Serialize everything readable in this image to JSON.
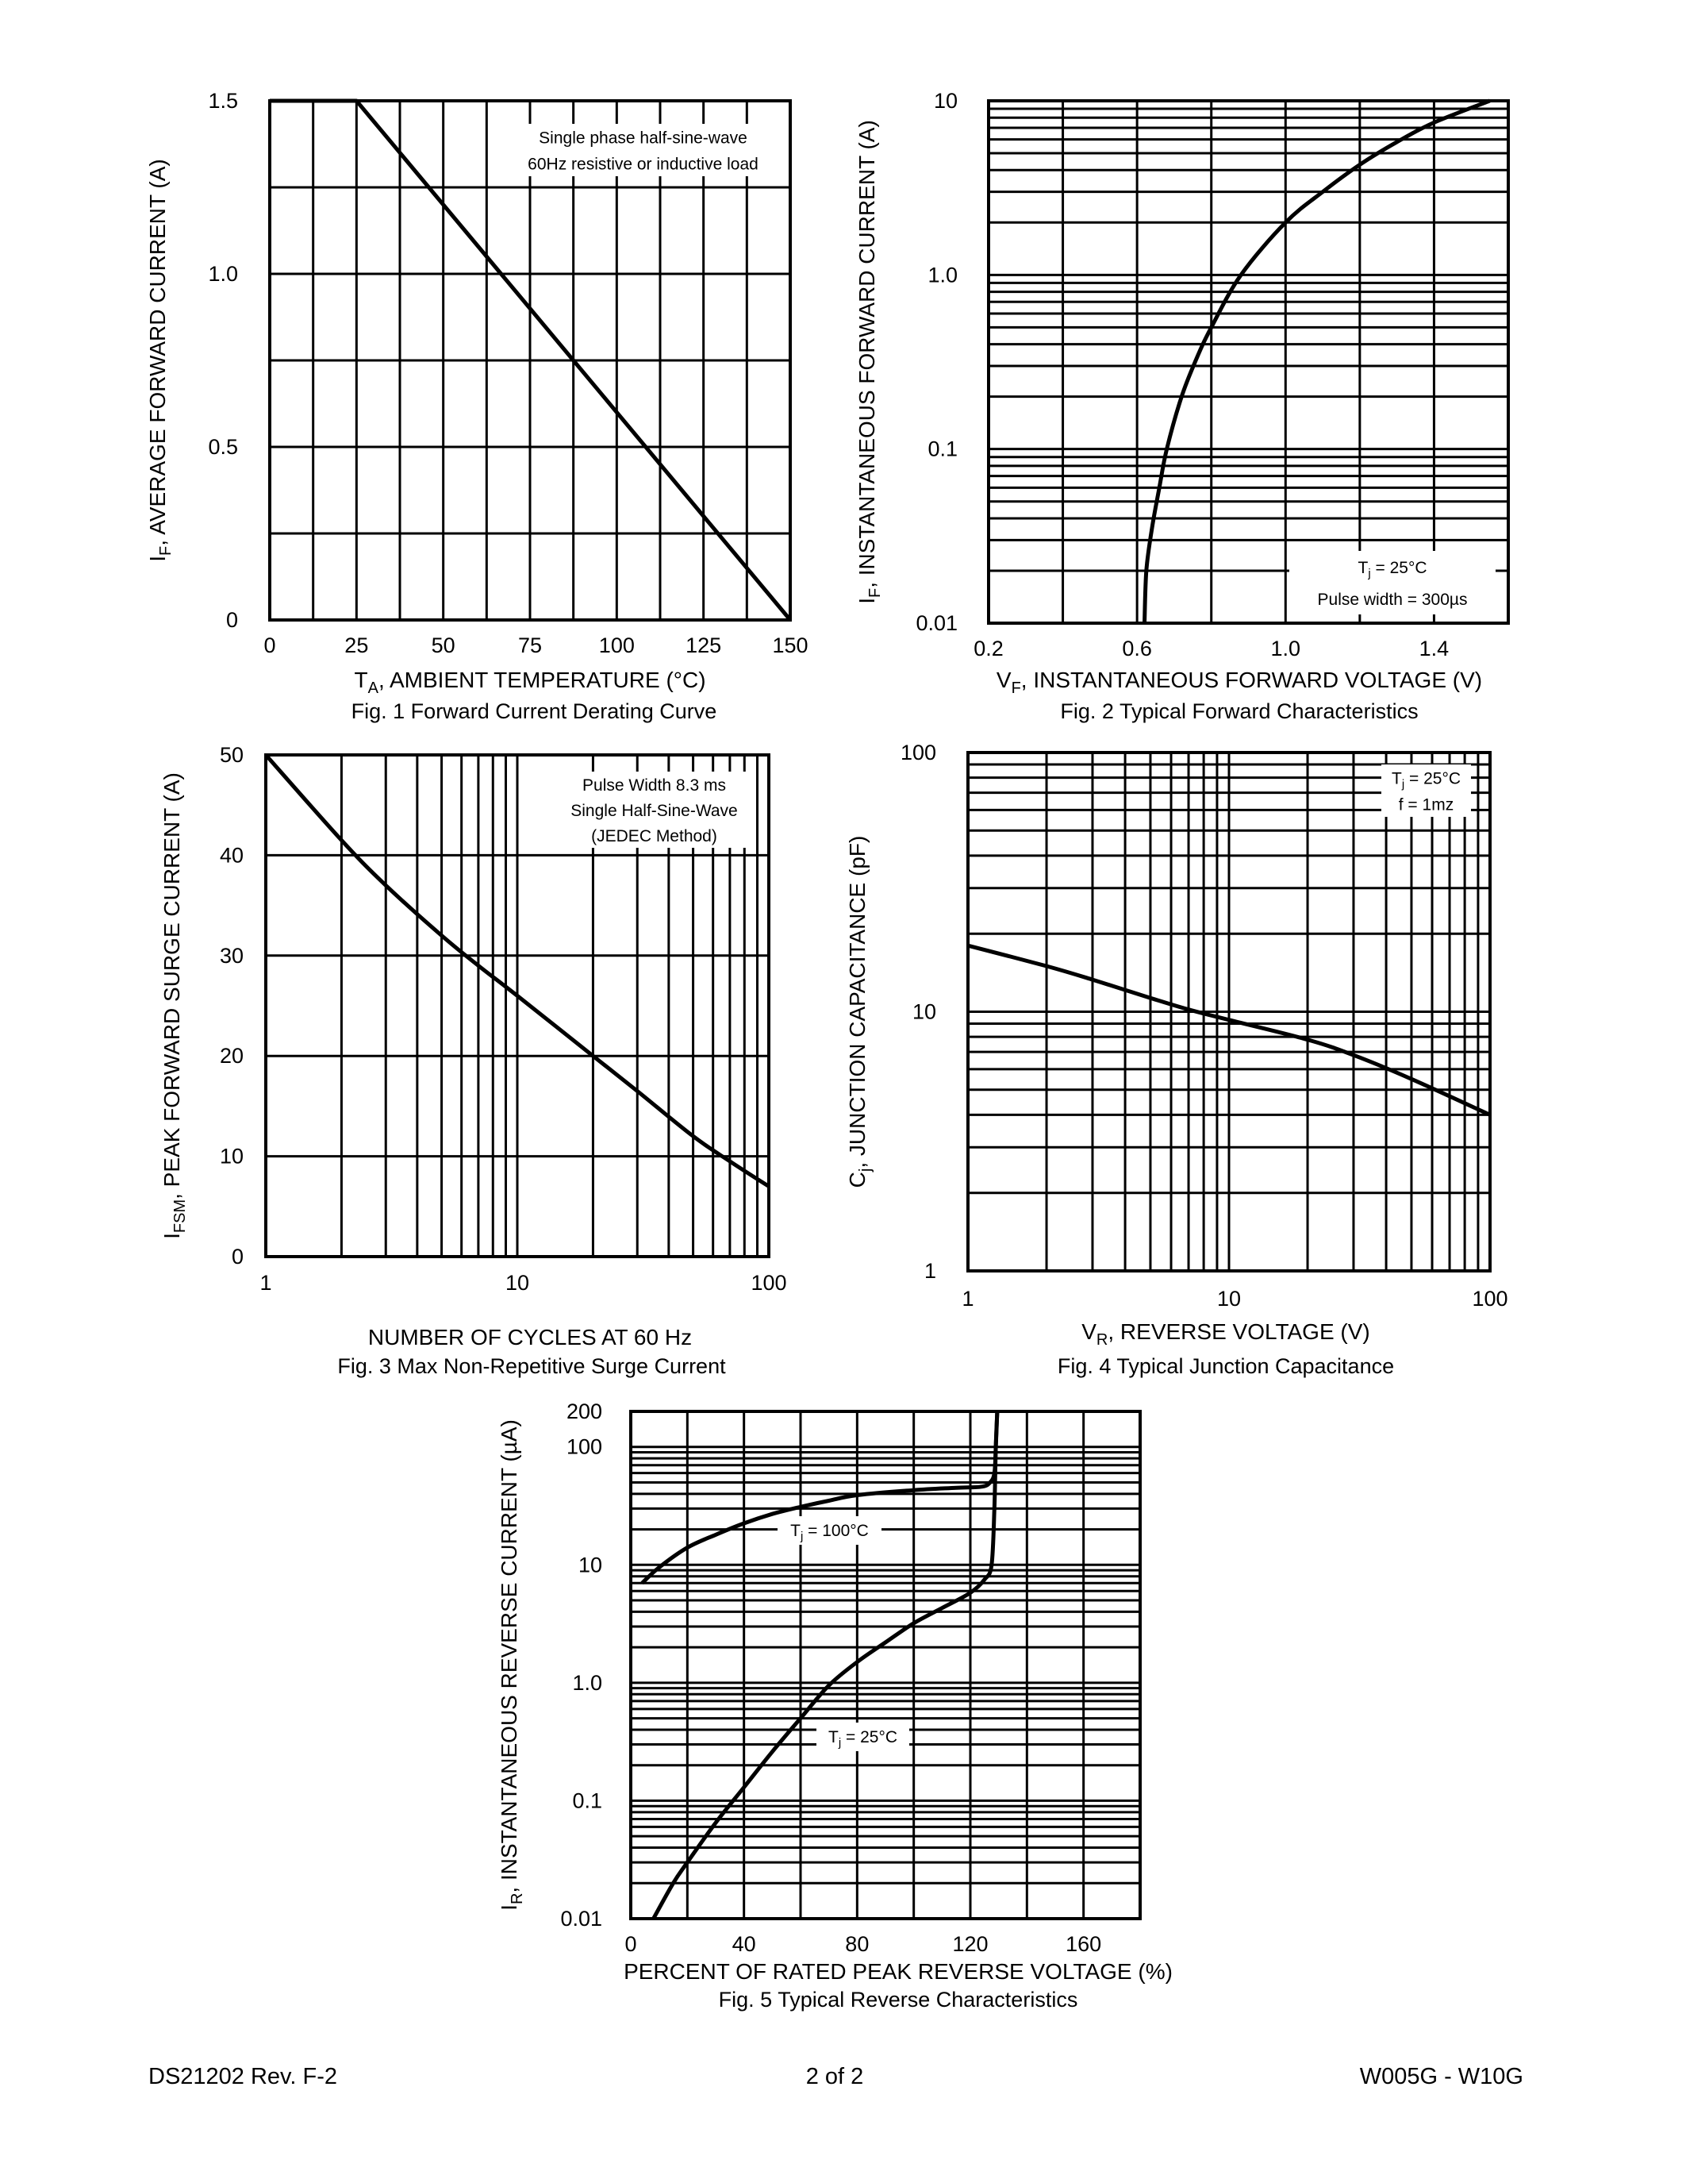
{
  "footer": {
    "left": "DS21202 Rev. F-2",
    "center": "2 of 2",
    "right": "W005G - W10G"
  },
  "colors": {
    "line": "#000000",
    "grid": "#000000",
    "background": "#ffffff"
  },
  "chart_data": [
    {
      "type": "line",
      "title": "Fig. 1  Forward Current Derating Curve",
      "xlabel": {
        "pre": "T",
        "sub": "A",
        "post": ", AMBIENT TEMPERATURE (°C)"
      },
      "ylabel": {
        "pre": "I",
        "sub": "F",
        "post": ", AVERAGE FORWARD CURRENT (A)"
      },
      "xscale": "linear",
      "yscale": "linear",
      "xlim": [
        0,
        150
      ],
      "ylim": [
        0,
        1.5
      ],
      "grid": true,
      "xgrid_step": 12.5,
      "ygrid_step": 0.25,
      "xticks": [
        {
          "v": 0,
          "label": "0"
        },
        {
          "v": 25,
          "label": "25"
        },
        {
          "v": 50,
          "label": "50"
        },
        {
          "v": 75,
          "label": "75"
        },
        {
          "v": 100,
          "label": "100"
        },
        {
          "v": 125,
          "label": "125"
        },
        {
          "v": 150,
          "label": "150"
        }
      ],
      "yticks": [
        {
          "v": 0,
          "label": "0"
        },
        {
          "v": 0.5,
          "label": "0.5"
        },
        {
          "v": 1.0,
          "label": "1.0"
        },
        {
          "v": 1.5,
          "label": "1.5"
        }
      ],
      "annotation": [
        {
          "pre": "Single phase half-sine-wave"
        },
        {
          "pre": "60Hz resistive or inductive load"
        }
      ],
      "series": [
        {
          "x": [
            0,
            25,
            150
          ],
          "y": [
            1.5,
            1.5,
            0
          ]
        }
      ]
    },
    {
      "type": "line",
      "title": "Fig. 2  Typical Forward Characteristics",
      "xlabel": {
        "pre": "V",
        "sub": "F",
        "post": ", INSTANTANEOUS FORWARD VOLTAGE (V)"
      },
      "ylabel": {
        "pre": "I",
        "sub": "F",
        "post": ", INSTANTANEOUS FORWARD CURRENT (A)"
      },
      "xscale": "linear",
      "yscale": "log",
      "xlim": [
        0.2,
        1.6
      ],
      "ylim": [
        0.01,
        10
      ],
      "grid": true,
      "xgrid_step": 0.2,
      "xticks": [
        {
          "v": 0.2,
          "label": "0.2"
        },
        {
          "v": 0.6,
          "label": "0.6"
        },
        {
          "v": 1.0,
          "label": "1.0"
        },
        {
          "v": 1.4,
          "label": "1.4"
        }
      ],
      "yticks": [
        {
          "v": 0.01,
          "label": "0.01"
        },
        {
          "v": 0.1,
          "label": "0.1"
        },
        {
          "v": 1,
          "label": "1.0"
        },
        {
          "v": 10,
          "label": "10"
        }
      ],
      "annotation": [
        {
          "pre": "T",
          "sub": "j",
          "post": " = 25°C"
        },
        {
          "pre": "Pulse width = 300µs"
        }
      ],
      "series": [
        {
          "x": [
            0.62,
            0.625,
            0.64,
            0.66,
            0.68,
            0.72,
            0.76,
            0.8,
            0.88,
            1.0,
            1.1,
            1.2,
            1.3,
            1.4,
            1.55
          ],
          "y": [
            0.01,
            0.02,
            0.035,
            0.06,
            0.1,
            0.2,
            0.33,
            0.5,
            1.0,
            2.0,
            3.0,
            4.3,
            5.8,
            7.5,
            10
          ]
        }
      ]
    },
    {
      "type": "line",
      "title": "Fig. 3  Max Non-Repetitive Surge Current",
      "xlabel": {
        "pre": "NUMBER OF CYCLES AT 60 Hz"
      },
      "ylabel": {
        "pre": "I",
        "sub": "FSM",
        "post": ", PEAK FORWARD SURGE CURRENT (A)"
      },
      "xscale": "log",
      "yscale": "linear",
      "xlim": [
        1,
        100
      ],
      "ylim": [
        0,
        50
      ],
      "grid": true,
      "ygrid_step": 10,
      "xticks": [
        {
          "v": 1,
          "label": "1"
        },
        {
          "v": 10,
          "label": "10"
        },
        {
          "v": 100,
          "label": "100"
        }
      ],
      "yticks": [
        {
          "v": 0,
          "label": "0"
        },
        {
          "v": 10,
          "label": "10"
        },
        {
          "v": 20,
          "label": "20"
        },
        {
          "v": 30,
          "label": "30"
        },
        {
          "v": 40,
          "label": "40"
        },
        {
          "v": 50,
          "label": "50"
        }
      ],
      "annotation": [
        {
          "pre": "Pulse Width 8.3 ms"
        },
        {
          "pre": "Single Half-Sine-Wave"
        },
        {
          "pre": "(JEDEC Method)"
        }
      ],
      "series": [
        {
          "x": [
            1,
            2,
            3,
            5,
            7,
            10,
            20,
            30,
            50,
            70,
            100
          ],
          "y": [
            50,
            41.5,
            37,
            32,
            29,
            26,
            20,
            16.5,
            12,
            9.5,
            7
          ]
        }
      ]
    },
    {
      "type": "line",
      "title": "Fig. 4  Typical Junction Capacitance",
      "xlabel": {
        "pre": "V",
        "sub": "R",
        "post": ", REVERSE VOLTAGE (V)"
      },
      "ylabel": {
        "pre": "C",
        "sub": "j",
        "post": ", JUNCTION CAPACITANCE (pF)"
      },
      "xscale": "log",
      "yscale": "log",
      "xlim": [
        1,
        100
      ],
      "ylim": [
        1,
        100
      ],
      "grid": true,
      "xticks": [
        {
          "v": 1,
          "label": "1"
        },
        {
          "v": 10,
          "label": "10"
        },
        {
          "v": 100,
          "label": "100"
        }
      ],
      "yticks": [
        {
          "v": 1,
          "label": "1"
        },
        {
          "v": 10,
          "label": "10"
        },
        {
          "v": 100,
          "label": "100"
        }
      ],
      "annotation": [
        {
          "pre": "T",
          "sub": "j",
          "post": " = 25°C"
        },
        {
          "pre": "f = 1mz"
        }
      ],
      "series": [
        {
          "x": [
            1,
            2,
            3,
            5,
            7,
            10,
            20,
            30,
            50,
            100
          ],
          "y": [
            18,
            15,
            13.3,
            11.3,
            10.2,
            9.3,
            7.8,
            6.8,
            5.5,
            4
          ]
        }
      ]
    },
    {
      "type": "line",
      "title": "Fig. 5  Typical Reverse Characteristics",
      "xlabel": {
        "pre": "PERCENT OF RATED PEAK REVERSE VOLTAGE (%)"
      },
      "ylabel": {
        "pre": "I",
        "sub": "R",
        "post": ", INSTANTANEOUS REVERSE CURRENT (µA)"
      },
      "xscale": "linear",
      "yscale": "log",
      "xlim": [
        0,
        180
      ],
      "ylim": [
        0.01,
        200
      ],
      "grid": true,
      "xgrid_step": 20,
      "xticks": [
        {
          "v": 0,
          "label": "0"
        },
        {
          "v": 40,
          "label": "40"
        },
        {
          "v": 80,
          "label": "80"
        },
        {
          "v": 120,
          "label": "120"
        },
        {
          "v": 160,
          "label": "160"
        }
      ],
      "yticks": [
        {
          "v": 0.01,
          "label": "0.01"
        },
        {
          "v": 0.1,
          "label": "0.1"
        },
        {
          "v": 1,
          "label": "1.0"
        },
        {
          "v": 10,
          "label": "10"
        },
        {
          "v": 100,
          "label": "100"
        },
        {
          "v": 200,
          "label": "200"
        }
      ],
      "labels": [
        {
          "pre": "T",
          "sub": "j",
          "post": " = 100°C"
        },
        {
          "pre": "T",
          "sub": "j",
          "post": " = 25°C"
        }
      ],
      "series": [
        {
          "x": [
            4,
            10,
            20,
            30,
            40,
            50,
            60,
            70,
            80,
            100,
            115,
            124,
            127,
            128.5,
            129,
            129.5
          ],
          "y": [
            7,
            9.5,
            14,
            18,
            22.5,
            27,
            31,
            35,
            39,
            43,
            45,
            46,
            50,
            60,
            100,
            200
          ]
        },
        {
          "x": [
            8,
            15,
            20,
            30,
            40,
            50,
            60,
            70,
            80,
            90,
            100,
            110,
            120,
            125,
            127.5,
            128.5,
            129,
            129.5
          ],
          "y": [
            0.01,
            0.02,
            0.03,
            0.065,
            0.13,
            0.26,
            0.5,
            0.95,
            1.5,
            2.2,
            3.2,
            4.3,
            5.8,
            7.5,
            10,
            30,
            100,
            200
          ]
        }
      ]
    }
  ]
}
